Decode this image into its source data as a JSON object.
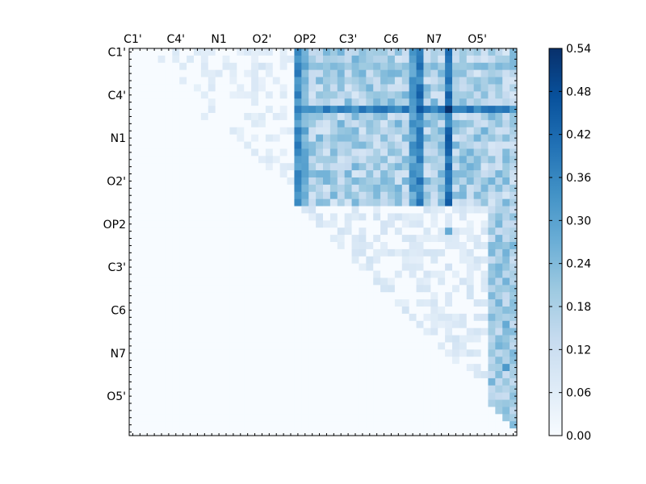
{
  "chart_data": {
    "type": "heatmap",
    "title": "",
    "xlabel": "",
    "ylabel": "",
    "grid": false,
    "n": 54,
    "x_tick_labels": [
      "C1'",
      "C4'",
      "N1",
      "O2'",
      "OP2",
      "C3'",
      "C6",
      "N7",
      "O5'"
    ],
    "y_tick_labels": [
      "C1'",
      "C4'",
      "N1",
      "O2'",
      "OP2",
      "C3'",
      "C6",
      "N7",
      "O5'"
    ],
    "label_positions": [
      0,
      6,
      12,
      18,
      24,
      30,
      36,
      42,
      48
    ],
    "x_labels_position": "top",
    "colormap": "Blues",
    "colorbar": {
      "min": 0.0,
      "max": 0.54,
      "tick_labels": [
        "0.00",
        "0.06",
        "0.12",
        "0.18",
        "0.24",
        "0.30",
        "0.36",
        "0.42",
        "0.48",
        "0.54"
      ],
      "position": "right"
    },
    "structure": "upper-triangular; lower triangle is ~0",
    "notable_columns": {
      "23": 0.36,
      "24": 0.28,
      "39": 0.32,
      "40": 0.38,
      "44": 0.42
    },
    "notable_rows": {
      "8": 0.36,
      "2": 0.22
    },
    "block_upper_left": {
      "rows": [
        0,
        21
      ],
      "cols": [
        23,
        54
      ],
      "typical": 0.24
    },
    "block_lower_right": {
      "rows": [
        22,
        54
      ],
      "cols": [
        24,
        54
      ],
      "typical": 0.08
    },
    "examples": [
      {
        "row": 8,
        "col": 40,
        "value": 0.46
      },
      {
        "row": 8,
        "col": 44,
        "value": 0.54
      },
      {
        "row": 6,
        "col": 40,
        "value": 0.44
      },
      {
        "row": 0,
        "col": 23,
        "value": 0.36
      },
      {
        "row": 44,
        "col": 52,
        "value": 0.32
      },
      {
        "row": 38,
        "col": 52,
        "value": 0.28
      },
      {
        "row": 28,
        "col": 52,
        "value": 0.26
      },
      {
        "row": 25,
        "col": 44,
        "value": 0.28
      },
      {
        "row": 2,
        "col": 18,
        "value": 0.1
      },
      {
        "row": 9,
        "col": 10,
        "value": 0.06
      }
    ]
  }
}
